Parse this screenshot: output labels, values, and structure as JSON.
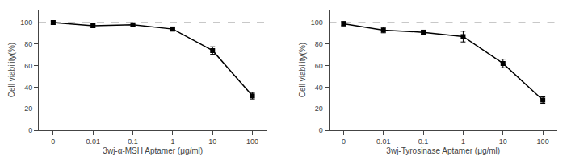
{
  "chart_data": [
    {
      "type": "line",
      "categories": [
        "0",
        "0.01",
        "0.1",
        "1",
        "10",
        "100"
      ],
      "series": [
        {
          "values": [
            100,
            97,
            98,
            94,
            74,
            32
          ],
          "errors": [
            1.5,
            1.5,
            1.5,
            2.0,
            3.5,
            3.0
          ],
          "color": "black",
          "marker": "square",
          "line_style": "solid"
        }
      ],
      "xlabel": "3wj-α-MSH Aptamer (μg/ml)",
      "ylabel": "Cell viability(%)",
      "ylim": [
        0,
        112
      ],
      "yticks": [
        0,
        20,
        40,
        60,
        80,
        100
      ],
      "grid": false,
      "reference_line": {
        "y": 100,
        "color": "gray",
        "line_style": "dashed"
      }
    },
    {
      "type": "line",
      "categories": [
        "0",
        "0.01",
        "0.1",
        "1",
        "10",
        "100"
      ],
      "series": [
        {
          "values": [
            99,
            93,
            91,
            87,
            62,
            28
          ],
          "errors": [
            2.0,
            2.5,
            2.0,
            5.0,
            4.0,
            3.0
          ],
          "color": "black",
          "marker": "square",
          "line_style": "solid"
        }
      ],
      "xlabel": "3wj-Tyrosinase Aptamer (μg/ml)",
      "ylabel": "Cell viability(%)",
      "ylim": [
        0,
        112
      ],
      "yticks": [
        0,
        20,
        40,
        60,
        80,
        100
      ],
      "grid": false,
      "reference_line": {
        "y": 100,
        "color": "gray",
        "line_style": "dashed"
      }
    }
  ]
}
